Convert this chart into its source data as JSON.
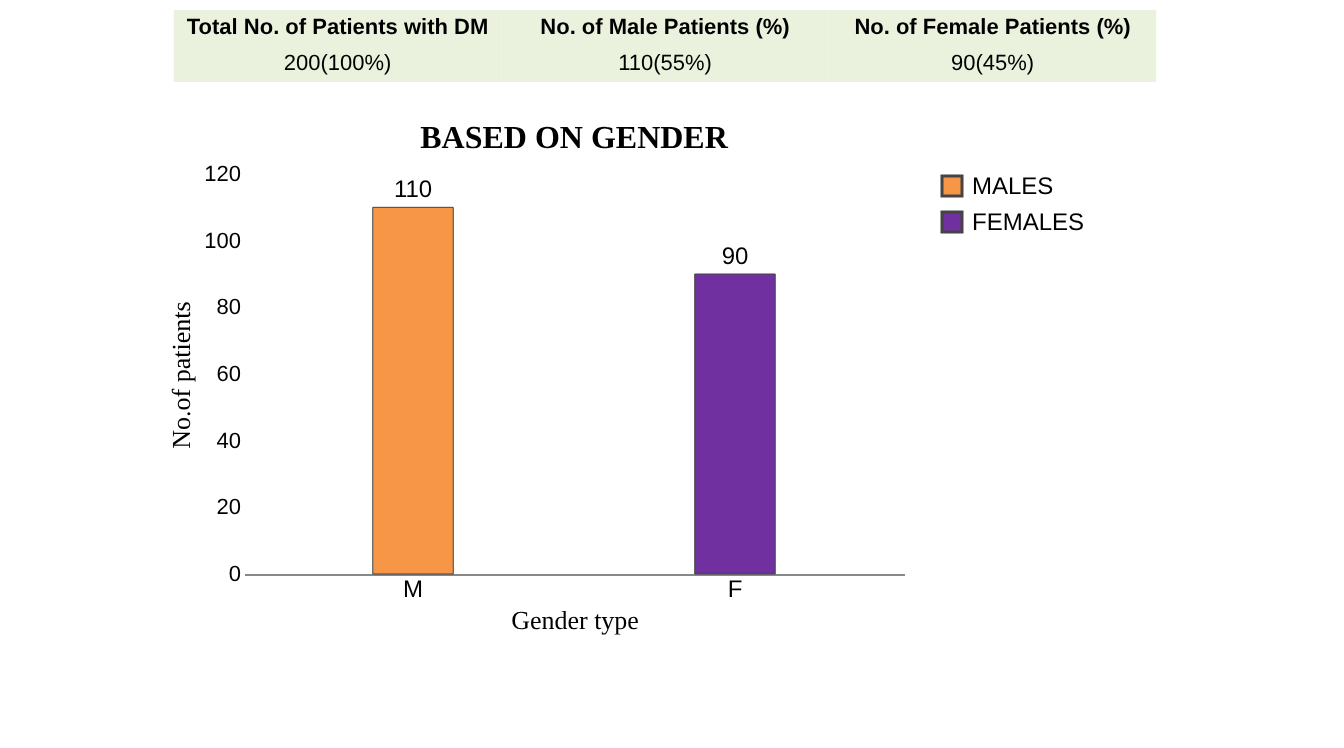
{
  "chart_data": {
    "type": "bar",
    "title": "BASED ON GENDER",
    "xlabel": "Gender type",
    "ylabel": "No.of patients",
    "categories": [
      "M",
      "F"
    ],
    "series": [
      {
        "name": "MALES",
        "color": "#f79646",
        "values": [
          110,
          null
        ]
      },
      {
        "name": "FEMALES",
        "color": "#7030a0",
        "values": [
          null,
          90
        ]
      }
    ],
    "ylim": [
      0,
      120
    ],
    "yticks": [
      0,
      20,
      40,
      60,
      80,
      100,
      120
    ],
    "grid": false,
    "legend": "right",
    "data_labels": true,
    "annotations": [
      "Total No. of Patients with DM",
      "No. of Male Patients (%)",
      "No. of Female Patients (%)",
      "200(100%)",
      "110(55%)",
      "90(45%)"
    ]
  }
}
